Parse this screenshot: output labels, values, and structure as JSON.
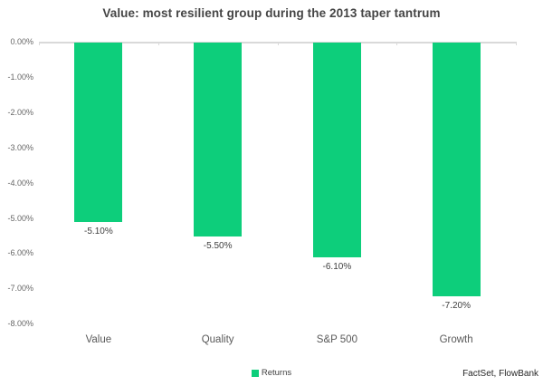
{
  "chart_data": {
    "type": "bar",
    "title": "Value: most resilient group during the 2013 taper tantrum",
    "categories": [
      "Value",
      "Quality",
      "S&P 500",
      "Growth"
    ],
    "series": [
      {
        "name": "Returns",
        "values": [
          -5.1,
          -5.5,
          -6.1,
          -7.2
        ]
      }
    ],
    "value_labels": [
      "-5.10%",
      "-5.50%",
      "-6.10%",
      "-7.20%"
    ],
    "ytick_labels": [
      "0.00%",
      "-1.00%",
      "-2.00%",
      "-3.00%",
      "-4.00%",
      "-5.00%",
      "-6.00%",
      "-7.00%",
      "-8.00%"
    ],
    "ylim": [
      -8,
      0
    ],
    "bar_color": "#0dce7b",
    "axis_color": "#d9d9d9",
    "grid": false,
    "legend_position": "bottom-center"
  },
  "legend": {
    "label": "Returns"
  },
  "source": "FactSet, FlowBank"
}
